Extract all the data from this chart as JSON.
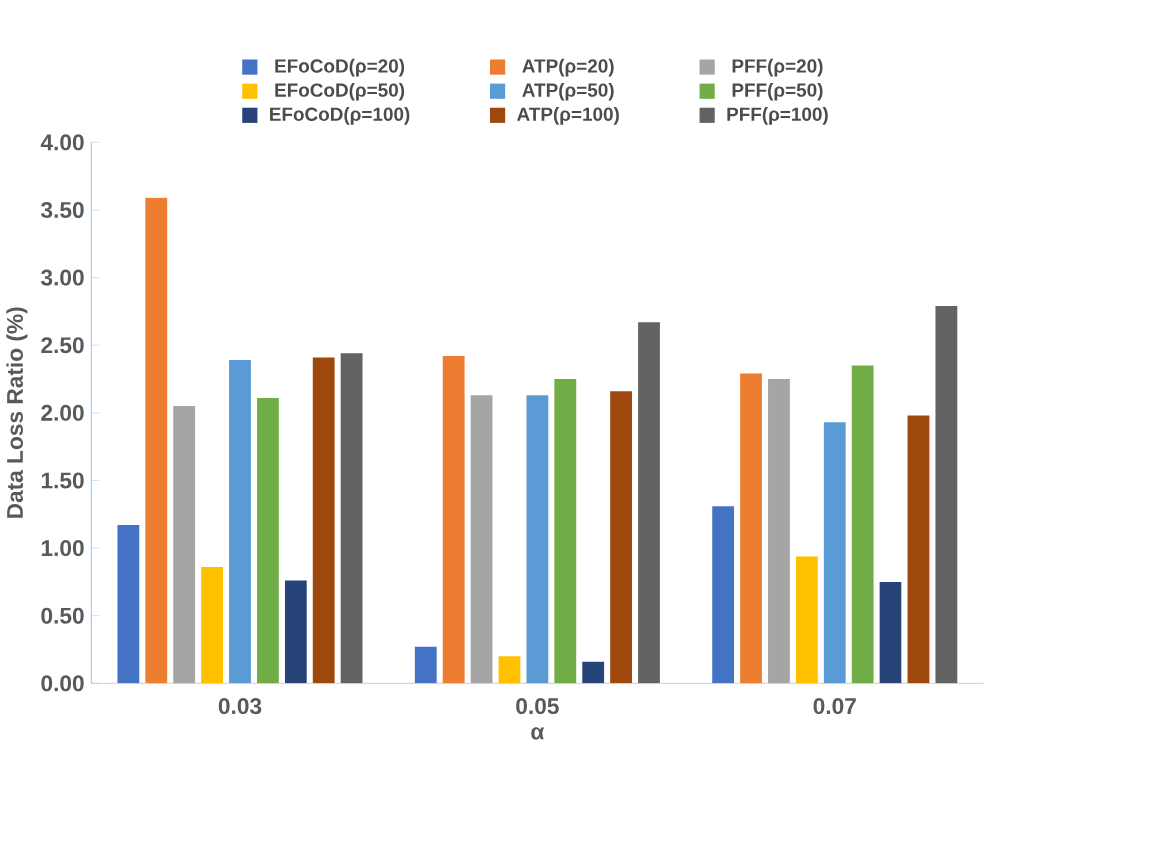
{
  "chart_data": {
    "type": "bar",
    "xlabel": "α",
    "ylabel": "Data Loss Ratio (%)",
    "categories": [
      "0.03",
      "0.05",
      "0.07"
    ],
    "ylim": [
      0,
      4
    ],
    "yticks": [
      {
        "value": 0,
        "label": "0.00"
      },
      {
        "value": 0.5,
        "label": "0.50"
      },
      {
        "value": 1,
        "label": "1.00"
      },
      {
        "value": 1.5,
        "label": "1.50"
      },
      {
        "value": 2,
        "label": "2.00"
      },
      {
        "value": 2.5,
        "label": "2.50"
      },
      {
        "value": 3,
        "label": "3.00"
      },
      {
        "value": 3.5,
        "label": "3.50"
      },
      {
        "value": 4,
        "label": "4.00"
      }
    ],
    "legend": "top",
    "grid": false,
    "series": [
      {
        "name": "EFoCoD(ρ=20)",
        "color": "#4472c4",
        "values": [
          1.17,
          0.27,
          1.31
        ]
      },
      {
        "name": "ATP(ρ=20)",
        "color": "#ed7d31",
        "values": [
          3.59,
          2.42,
          2.29
        ]
      },
      {
        "name": "PFF(ρ=20)",
        "color": "#a5a5a5",
        "values": [
          2.05,
          2.13,
          2.25
        ]
      },
      {
        "name": "EFoCoD(ρ=50)",
        "color": "#ffc000",
        "values": [
          0.86,
          0.2,
          0.94
        ]
      },
      {
        "name": "ATP(ρ=50)",
        "color": "#5b9bd5",
        "values": [
          2.39,
          2.13,
          1.93
        ]
      },
      {
        "name": "PFF(ρ=50)",
        "color": "#70ad47",
        "values": [
          2.11,
          2.25,
          2.35
        ]
      },
      {
        "name": "EFoCoD(ρ=100)",
        "color": "#264478",
        "values": [
          0.76,
          0.16,
          0.75
        ]
      },
      {
        "name": "ATP(ρ=100)",
        "color": "#9e480e",
        "values": [
          2.41,
          2.16,
          1.98
        ]
      },
      {
        "name": "PFF(ρ=100)",
        "color": "#636363",
        "values": [
          2.44,
          2.67,
          2.79
        ]
      }
    ]
  }
}
